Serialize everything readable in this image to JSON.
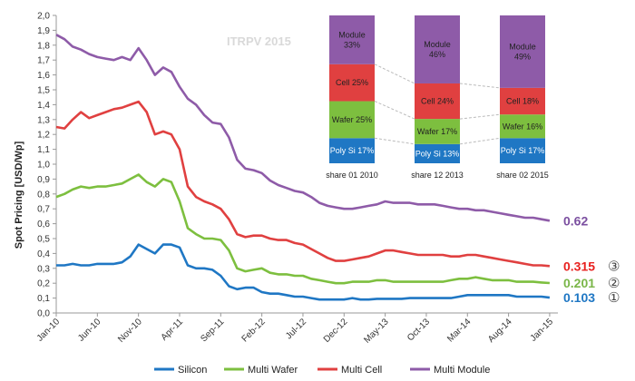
{
  "chart_data": {
    "type": "line",
    "ylabel": "Spot Pricing [USD/Wp]",
    "ylim": [
      0,
      2.0
    ],
    "yticks": [
      "0,0",
      "0,1",
      "0,2",
      "0,3",
      "0,4",
      "0,5",
      "0,6",
      "0,7",
      "0,8",
      "0,9",
      "1,0",
      "1,1",
      "1,2",
      "1,3",
      "1,4",
      "1,5",
      "1,6",
      "1,7",
      "1,8",
      "1,9",
      "2,0"
    ],
    "xlim": [
      0,
      61
    ],
    "xticks": [
      {
        "label": "Jan-10",
        "x": 0
      },
      {
        "label": "Jun-10",
        "x": 5
      },
      {
        "label": "Nov-10",
        "x": 10
      },
      {
        "label": "Apr-11",
        "x": 15
      },
      {
        "label": "Sep-11",
        "x": 20
      },
      {
        "label": "Feb-12",
        "x": 25
      },
      {
        "label": "Jul-12",
        "x": 30
      },
      {
        "label": "Dec-12",
        "x": 35
      },
      {
        "label": "May-13",
        "x": 40
      },
      {
        "label": "Oct-13",
        "x": 45
      },
      {
        "label": "Mar-14",
        "x": 50
      },
      {
        "label": "Aug-14",
        "x": 55
      },
      {
        "label": "Jan-15",
        "x": 60
      }
    ],
    "series": [
      {
        "name": "Silicon",
        "color": "#1f77c4",
        "points": [
          [
            0,
            0.32
          ],
          [
            1,
            0.32
          ],
          [
            2,
            0.33
          ],
          [
            3,
            0.32
          ],
          [
            4,
            0.32
          ],
          [
            5,
            0.33
          ],
          [
            6,
            0.33
          ],
          [
            7,
            0.33
          ],
          [
            8,
            0.34
          ],
          [
            9,
            0.38
          ],
          [
            10,
            0.46
          ],
          [
            11,
            0.43
          ],
          [
            12,
            0.4
          ],
          [
            13,
            0.46
          ],
          [
            14,
            0.46
          ],
          [
            15,
            0.44
          ],
          [
            16,
            0.32
          ],
          [
            17,
            0.3
          ],
          [
            18,
            0.3
          ],
          [
            19,
            0.29
          ],
          [
            20,
            0.25
          ],
          [
            21,
            0.18
          ],
          [
            22,
            0.16
          ],
          [
            23,
            0.17
          ],
          [
            24,
            0.17
          ],
          [
            25,
            0.14
          ],
          [
            26,
            0.13
          ],
          [
            27,
            0.13
          ],
          [
            28,
            0.12
          ],
          [
            29,
            0.11
          ],
          [
            30,
            0.11
          ],
          [
            31,
            0.1
          ],
          [
            32,
            0.09
          ],
          [
            33,
            0.09
          ],
          [
            34,
            0.09
          ],
          [
            35,
            0.09
          ],
          [
            36,
            0.1
          ],
          [
            37,
            0.09
          ],
          [
            38,
            0.09
          ],
          [
            39,
            0.095
          ],
          [
            40,
            0.095
          ],
          [
            41,
            0.095
          ],
          [
            42,
            0.095
          ],
          [
            43,
            0.1
          ],
          [
            44,
            0.1
          ],
          [
            45,
            0.1
          ],
          [
            46,
            0.1
          ],
          [
            47,
            0.1
          ],
          [
            48,
            0.1
          ],
          [
            49,
            0.11
          ],
          [
            50,
            0.12
          ],
          [
            51,
            0.12
          ],
          [
            52,
            0.12
          ],
          [
            53,
            0.12
          ],
          [
            54,
            0.12
          ],
          [
            55,
            0.12
          ],
          [
            56,
            0.11
          ],
          [
            57,
            0.11
          ],
          [
            58,
            0.11
          ],
          [
            59,
            0.11
          ],
          [
            60,
            0.103
          ]
        ]
      },
      {
        "name": "Multi Wafer",
        "color": "#7dbf3f",
        "points": [
          [
            0,
            0.78
          ],
          [
            1,
            0.8
          ],
          [
            2,
            0.83
          ],
          [
            3,
            0.85
          ],
          [
            4,
            0.84
          ],
          [
            5,
            0.85
          ],
          [
            6,
            0.85
          ],
          [
            7,
            0.86
          ],
          [
            8,
            0.87
          ],
          [
            9,
            0.9
          ],
          [
            10,
            0.93
          ],
          [
            11,
            0.88
          ],
          [
            12,
            0.85
          ],
          [
            13,
            0.9
          ],
          [
            14,
            0.88
          ],
          [
            15,
            0.75
          ],
          [
            16,
            0.57
          ],
          [
            17,
            0.53
          ],
          [
            18,
            0.5
          ],
          [
            19,
            0.5
          ],
          [
            20,
            0.49
          ],
          [
            21,
            0.42
          ],
          [
            22,
            0.3
          ],
          [
            23,
            0.28
          ],
          [
            24,
            0.29
          ],
          [
            25,
            0.3
          ],
          [
            26,
            0.27
          ],
          [
            27,
            0.26
          ],
          [
            28,
            0.26
          ],
          [
            29,
            0.25
          ],
          [
            30,
            0.25
          ],
          [
            31,
            0.23
          ],
          [
            32,
            0.22
          ],
          [
            33,
            0.21
          ],
          [
            34,
            0.2
          ],
          [
            35,
            0.2
          ],
          [
            36,
            0.21
          ],
          [
            37,
            0.21
          ],
          [
            38,
            0.21
          ],
          [
            39,
            0.22
          ],
          [
            40,
            0.22
          ],
          [
            41,
            0.21
          ],
          [
            42,
            0.21
          ],
          [
            43,
            0.21
          ],
          [
            44,
            0.21
          ],
          [
            45,
            0.21
          ],
          [
            46,
            0.21
          ],
          [
            47,
            0.21
          ],
          [
            48,
            0.22
          ],
          [
            49,
            0.23
          ],
          [
            50,
            0.23
          ],
          [
            51,
            0.24
          ],
          [
            52,
            0.23
          ],
          [
            53,
            0.22
          ],
          [
            54,
            0.22
          ],
          [
            55,
            0.22
          ],
          [
            56,
            0.21
          ],
          [
            57,
            0.21
          ],
          [
            58,
            0.21
          ],
          [
            59,
            0.205
          ],
          [
            60,
            0.201
          ]
        ]
      },
      {
        "name": "Multi Cell",
        "color": "#e04040",
        "points": [
          [
            0,
            1.25
          ],
          [
            1,
            1.24
          ],
          [
            2,
            1.3
          ],
          [
            3,
            1.35
          ],
          [
            4,
            1.31
          ],
          [
            5,
            1.33
          ],
          [
            6,
            1.35
          ],
          [
            7,
            1.37
          ],
          [
            8,
            1.38
          ],
          [
            9,
            1.4
          ],
          [
            10,
            1.42
          ],
          [
            11,
            1.35
          ],
          [
            12,
            1.2
          ],
          [
            13,
            1.22
          ],
          [
            14,
            1.2
          ],
          [
            15,
            1.1
          ],
          [
            16,
            0.85
          ],
          [
            17,
            0.78
          ],
          [
            18,
            0.75
          ],
          [
            19,
            0.73
          ],
          [
            20,
            0.7
          ],
          [
            21,
            0.63
          ],
          [
            22,
            0.53
          ],
          [
            23,
            0.51
          ],
          [
            24,
            0.52
          ],
          [
            25,
            0.52
          ],
          [
            26,
            0.5
          ],
          [
            27,
            0.49
          ],
          [
            28,
            0.49
          ],
          [
            29,
            0.47
          ],
          [
            30,
            0.46
          ],
          [
            31,
            0.43
          ],
          [
            32,
            0.4
          ],
          [
            33,
            0.37
          ],
          [
            34,
            0.35
          ],
          [
            35,
            0.35
          ],
          [
            36,
            0.36
          ],
          [
            37,
            0.37
          ],
          [
            38,
            0.38
          ],
          [
            39,
            0.4
          ],
          [
            40,
            0.42
          ],
          [
            41,
            0.42
          ],
          [
            42,
            0.41
          ],
          [
            43,
            0.4
          ],
          [
            44,
            0.39
          ],
          [
            45,
            0.39
          ],
          [
            46,
            0.39
          ],
          [
            47,
            0.39
          ],
          [
            48,
            0.38
          ],
          [
            49,
            0.38
          ],
          [
            50,
            0.39
          ],
          [
            51,
            0.39
          ],
          [
            52,
            0.38
          ],
          [
            53,
            0.37
          ],
          [
            54,
            0.36
          ],
          [
            55,
            0.35
          ],
          [
            56,
            0.34
          ],
          [
            57,
            0.33
          ],
          [
            58,
            0.32
          ],
          [
            59,
            0.32
          ],
          [
            60,
            0.315
          ]
        ]
      },
      {
        "name": "Multi Module",
        "color": "#8e5ba8",
        "points": [
          [
            0,
            1.87
          ],
          [
            1,
            1.84
          ],
          [
            2,
            1.79
          ],
          [
            3,
            1.77
          ],
          [
            4,
            1.74
          ],
          [
            5,
            1.72
          ],
          [
            6,
            1.71
          ],
          [
            7,
            1.7
          ],
          [
            8,
            1.72
          ],
          [
            9,
            1.7
          ],
          [
            10,
            1.78
          ],
          [
            11,
            1.7
          ],
          [
            12,
            1.6
          ],
          [
            13,
            1.65
          ],
          [
            14,
            1.62
          ],
          [
            15,
            1.52
          ],
          [
            16,
            1.44
          ],
          [
            17,
            1.4
          ],
          [
            18,
            1.33
          ],
          [
            19,
            1.28
          ],
          [
            20,
            1.27
          ],
          [
            21,
            1.18
          ],
          [
            22,
            1.03
          ],
          [
            23,
            0.97
          ],
          [
            24,
            0.96
          ],
          [
            25,
            0.94
          ],
          [
            26,
            0.89
          ],
          [
            27,
            0.86
          ],
          [
            28,
            0.84
          ],
          [
            29,
            0.82
          ],
          [
            30,
            0.81
          ],
          [
            31,
            0.78
          ],
          [
            32,
            0.74
          ],
          [
            33,
            0.72
          ],
          [
            34,
            0.71
          ],
          [
            35,
            0.7
          ],
          [
            36,
            0.7
          ],
          [
            37,
            0.71
          ],
          [
            38,
            0.72
          ],
          [
            39,
            0.73
          ],
          [
            40,
            0.75
          ],
          [
            41,
            0.74
          ],
          [
            42,
            0.74
          ],
          [
            43,
            0.74
          ],
          [
            44,
            0.73
          ],
          [
            45,
            0.73
          ],
          [
            46,
            0.73
          ],
          [
            47,
            0.72
          ],
          [
            48,
            0.71
          ],
          [
            49,
            0.7
          ],
          [
            50,
            0.7
          ],
          [
            51,
            0.69
          ],
          [
            52,
            0.69
          ],
          [
            53,
            0.68
          ],
          [
            54,
            0.67
          ],
          [
            55,
            0.66
          ],
          [
            56,
            0.65
          ],
          [
            57,
            0.64
          ],
          [
            58,
            0.64
          ],
          [
            59,
            0.63
          ],
          [
            60,
            0.62
          ]
        ]
      }
    ],
    "end_labels": [
      {
        "series": "Multi Module",
        "text": "0.62",
        "circle": "",
        "color": "#7b4fa0",
        "value": 0.62
      },
      {
        "series": "Multi Cell",
        "text": "0.315",
        "circle": "③",
        "color": "#e8211f",
        "value": 0.315
      },
      {
        "series": "Multi Wafer",
        "text": "0.201",
        "circle": "②",
        "color": "#7ab648",
        "value": 0.201
      },
      {
        "series": "Silicon",
        "text": "0.103",
        "circle": "①",
        "color": "#1f77c4",
        "value": 0.103
      }
    ],
    "watermark": "ITRPV 2015",
    "inset": {
      "type": "stacked-bar",
      "bars": [
        {
          "caption": "share 01  2010",
          "segments": [
            {
              "label": "Poly Si 17%",
              "value": 17,
              "color": "#1f77c4"
            },
            {
              "label": "Wafer 25%",
              "value": 25,
              "color": "#7dbf3f"
            },
            {
              "label": "Cell 25%",
              "value": 25,
              "color": "#e04040"
            },
            {
              "label": "Module\n33%",
              "value": 33,
              "color": "#8e5ba8"
            }
          ]
        },
        {
          "caption": "share 12  2013",
          "segments": [
            {
              "label": "Poly Si 13%",
              "value": 13,
              "color": "#1f77c4"
            },
            {
              "label": "Wafer 17%",
              "value": 17,
              "color": "#7dbf3f"
            },
            {
              "label": "Cell 24%",
              "value": 24,
              "color": "#e04040"
            },
            {
              "label": "Module\n46%",
              "value": 46,
              "color": "#8e5ba8"
            }
          ]
        },
        {
          "caption": "share 02  2015",
          "segments": [
            {
              "label": "Poly Si 17%",
              "value": 17,
              "color": "#1f77c4"
            },
            {
              "label": "Wafer 16%",
              "value": 16,
              "color": "#7dbf3f"
            },
            {
              "label": "Cell 18%",
              "value": 18,
              "color": "#e04040"
            },
            {
              "label": "Module\n49%",
              "value": 49,
              "color": "#8e5ba8"
            }
          ]
        }
      ]
    },
    "legend": {
      "position": "bottom",
      "items": [
        "Silicon",
        "Multi Wafer",
        "Multi Cell",
        "Multi Module"
      ]
    },
    "grid": false
  }
}
